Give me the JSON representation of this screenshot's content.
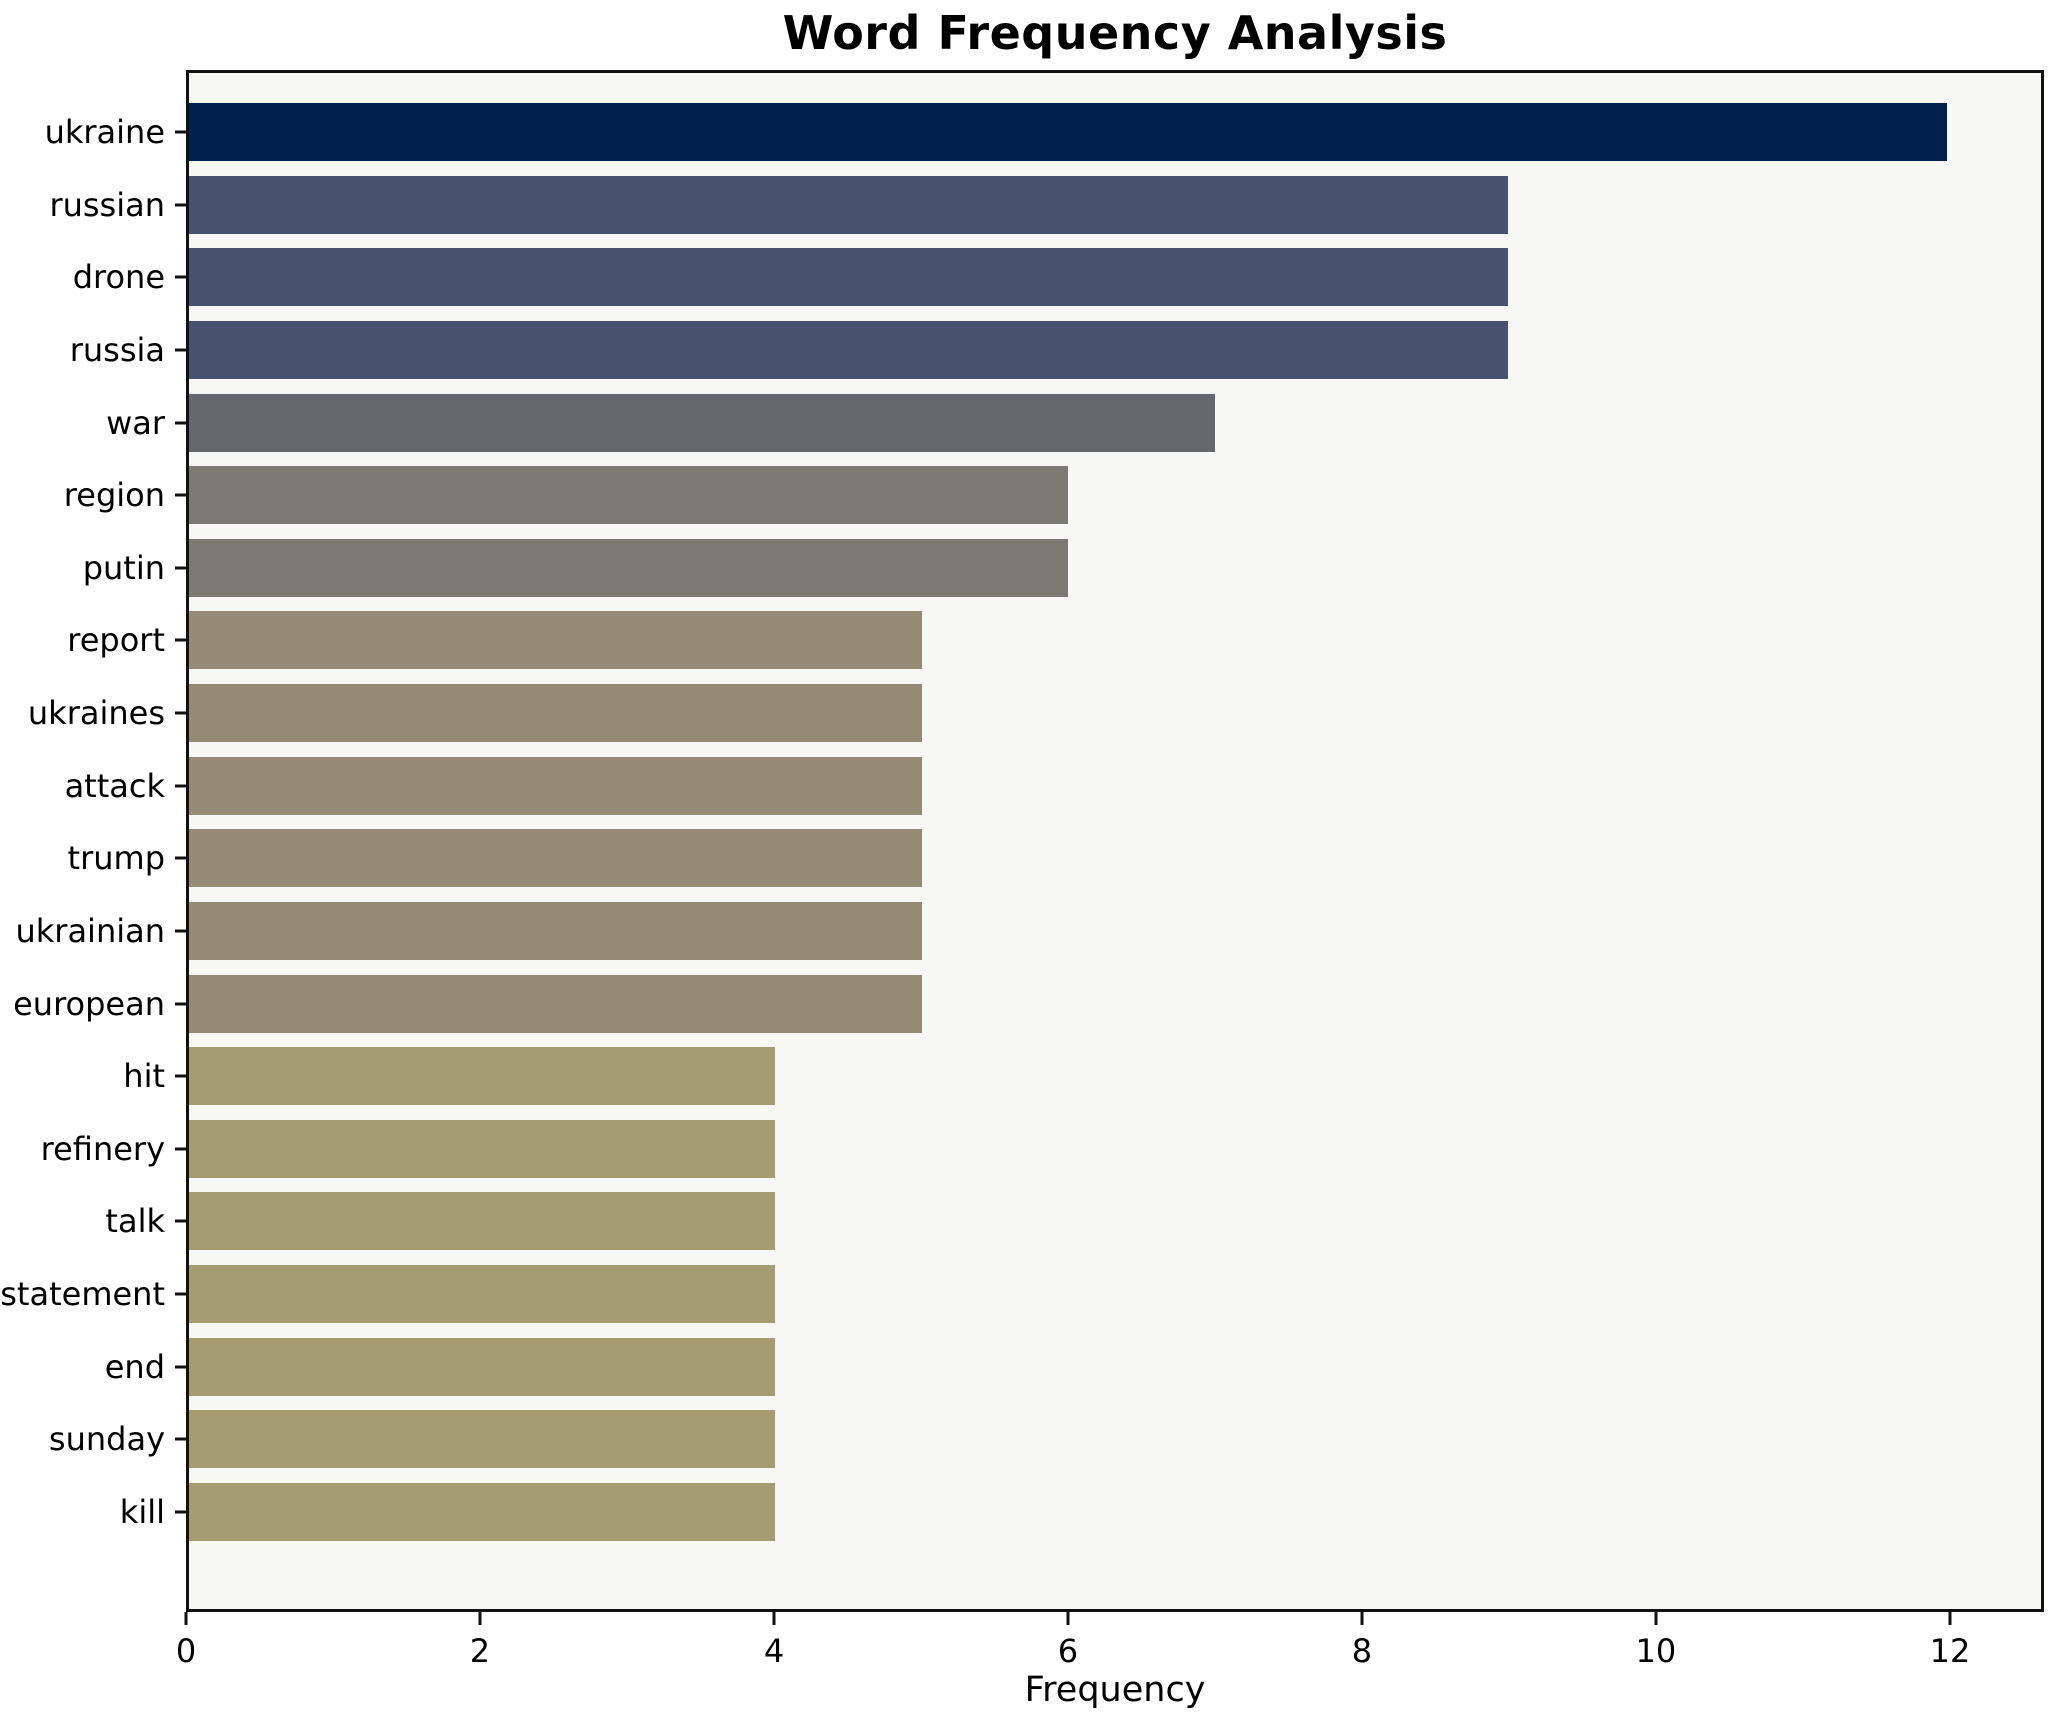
{
  "title": "Word Frequency Analysis",
  "chart_data": {
    "type": "bar",
    "orientation": "horizontal",
    "title": "Word Frequency Analysis",
    "xlabel": "Frequency",
    "ylabel": "",
    "categories": [
      "ukraine",
      "russian",
      "drone",
      "russia",
      "war",
      "region",
      "putin",
      "report",
      "ukraines",
      "attack",
      "trump",
      "ukrainian",
      "european",
      "hit",
      "refinery",
      "talk",
      "statement",
      "end",
      "sunday",
      "kill"
    ],
    "values": [
      12,
      9,
      9,
      9,
      7,
      6,
      6,
      5,
      5,
      5,
      5,
      5,
      5,
      4,
      4,
      4,
      4,
      4,
      4,
      4
    ],
    "bar_colors": [
      "#00214d",
      "#46526f",
      "#46526f",
      "#46526f",
      "#67686f",
      "#7b7a74",
      "#7b7a74",
      "#938b74",
      "#938b74",
      "#938b74",
      "#938b74",
      "#938b74",
      "#938b74",
      "#a59c72",
      "#a59c72",
      "#a59c72",
      "#a59c72",
      "#a59c72",
      "#a59c72",
      "#a59c72"
    ],
    "xticks": [
      0,
      2,
      4,
      6,
      8,
      10,
      12
    ],
    "xlim": [
      0,
      12.64
    ],
    "grid": false,
    "legend": false,
    "plot_background": "#f7f7f5",
    "spine_color": "#111111"
  }
}
